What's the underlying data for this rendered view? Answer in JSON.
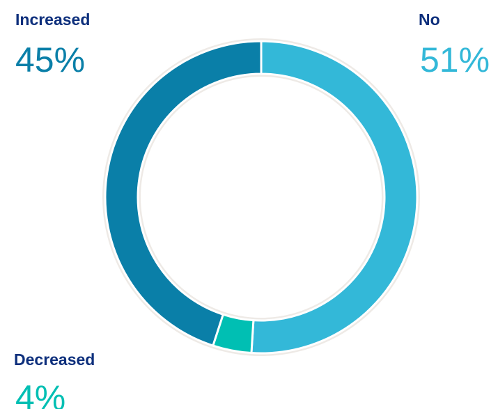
{
  "chart_data": {
    "type": "pie",
    "categories": [
      "No",
      "Decreased",
      "Increased"
    ],
    "values": [
      51,
      4,
      45
    ],
    "value_labels": [
      "51%",
      "4%",
      "45%"
    ],
    "colors": [
      "#33b8d8",
      "#00bfb3",
      "#0a7fa8"
    ]
  }
}
